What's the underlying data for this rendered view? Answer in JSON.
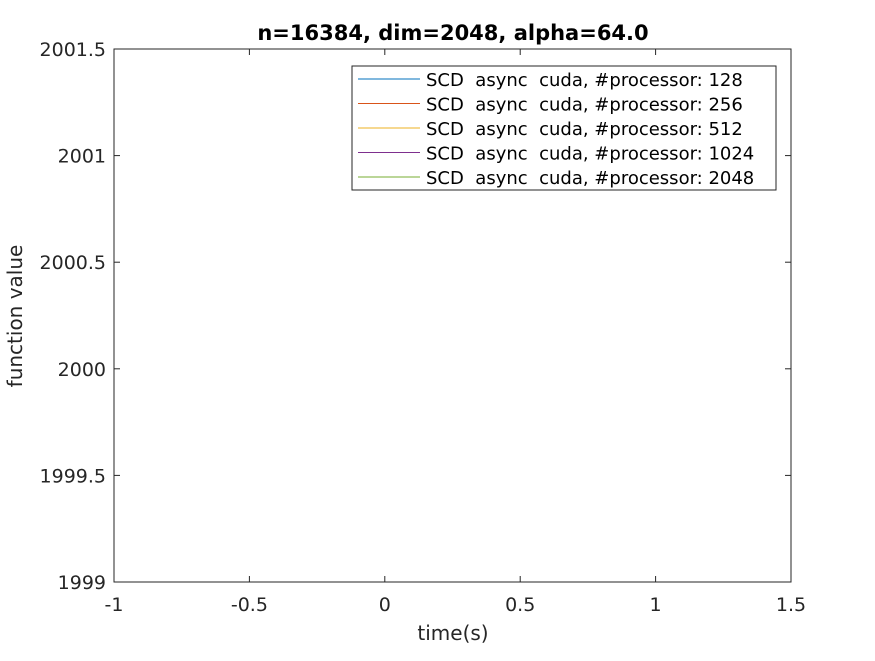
{
  "chart_data": {
    "type": "line",
    "title": "n=16384, dim=2048, alpha=64.0",
    "xlabel": "time(s)",
    "ylabel": "function value",
    "xlim": [
      -1,
      1.5
    ],
    "ylim": [
      1999,
      2001.5
    ],
    "x_ticks": [
      -1,
      -0.5,
      0,
      0.5,
      1,
      1.5
    ],
    "x_tick_labels": [
      "-1",
      "-0.5",
      "0",
      "0.5",
      "1",
      "1.5"
    ],
    "y_ticks": [
      1999,
      1999.5,
      2000,
      2000.5,
      2001,
      2001.5
    ],
    "y_tick_labels": [
      "1999",
      "1999.5",
      "2000",
      "2000.5",
      "2001",
      "2001.5"
    ],
    "grid": false,
    "legend_position": "top-right",
    "series": [
      {
        "name": "SCD  async  cuda, #processor: 128",
        "color": "#0072BD",
        "x": [],
        "y": []
      },
      {
        "name": "SCD  async  cuda, #processor: 256",
        "color": "#D95319",
        "x": [],
        "y": []
      },
      {
        "name": "SCD  async  cuda, #processor: 512",
        "color": "#EDB120",
        "x": [],
        "y": []
      },
      {
        "name": "SCD  async  cuda, #processor: 1024",
        "color": "#7E2F8E",
        "x": [],
        "y": []
      },
      {
        "name": "SCD  async  cuda, #processor: 2048",
        "color": "#77AC30",
        "x": [],
        "y": []
      }
    ]
  }
}
